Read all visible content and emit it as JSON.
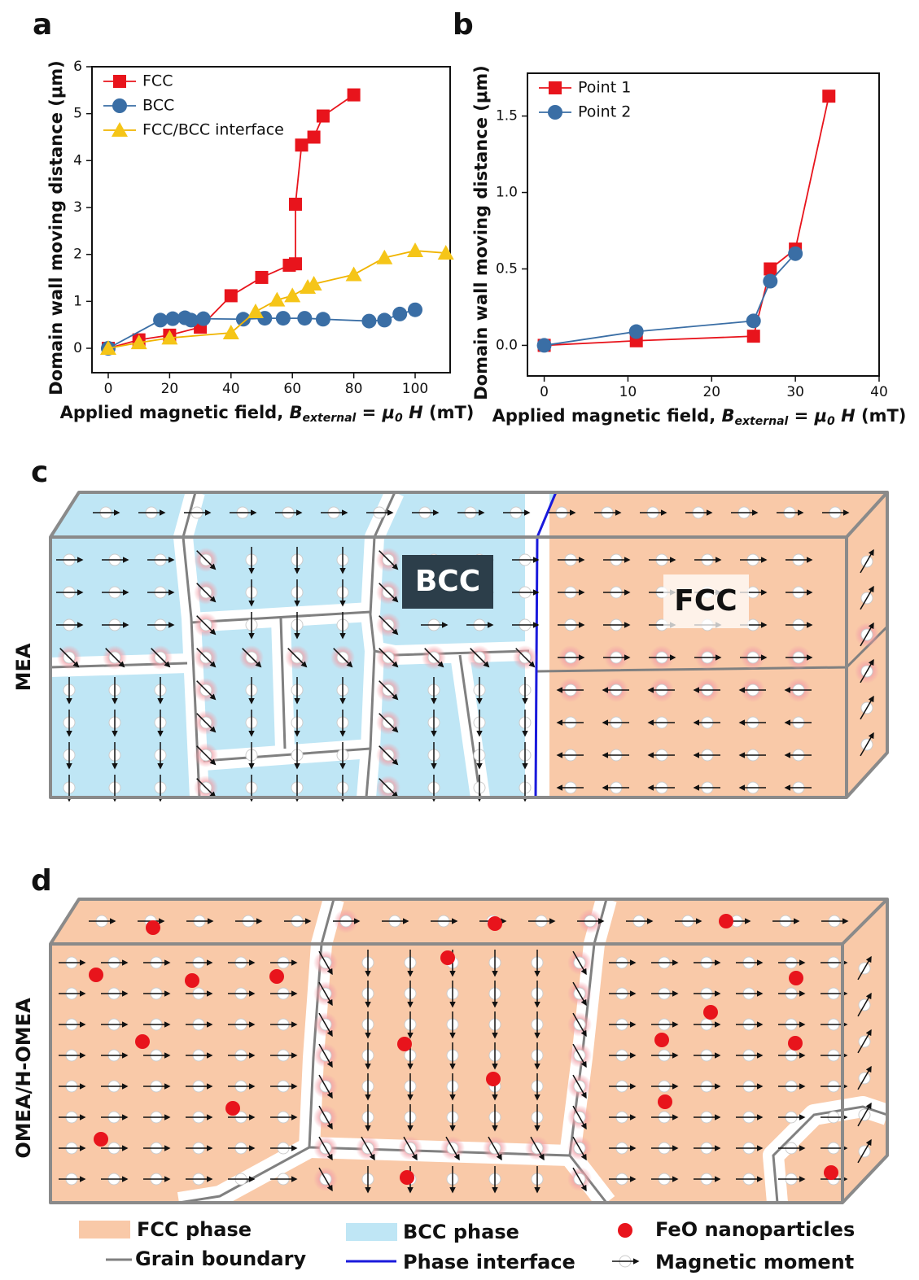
{
  "chart_data": [
    {
      "type": "line",
      "panel": "a",
      "y_label": "Domain wall moving distance (μm)",
      "x_label": [
        "Applied  magnetic field, ",
        "B",
        "external",
        " = ",
        "μ",
        "0",
        " H",
        " (mT)"
      ],
      "xlim": [
        -5.3,
        111.4
      ],
      "ylim": [
        -0.52,
        6
      ],
      "xticks": [
        0,
        20,
        40,
        60,
        80,
        100
      ],
      "yticks": [
        0,
        1,
        2,
        3,
        4,
        5,
        6
      ],
      "legend": "upper left",
      "series": [
        {
          "name": "FCC",
          "color": "#e8141c",
          "marker": "square",
          "x": [
            0,
            10,
            20,
            30,
            40,
            50,
            59,
            61,
            61,
            63,
            67,
            70,
            80
          ],
          "values": [
            0,
            0.18,
            0.28,
            0.45,
            1.12,
            1.51,
            1.77,
            1.8,
            3.07,
            4.33,
            4.5,
            4.95,
            5.4
          ]
        },
        {
          "name": "BCC",
          "color": "#3a6ea5",
          "marker": "circle",
          "x": [
            0,
            17,
            21,
            25,
            27,
            31,
            44,
            51,
            57,
            64,
            70,
            85,
            90,
            95,
            100
          ],
          "values": [
            0,
            0.6,
            0.63,
            0.65,
            0.6,
            0.63,
            0.62,
            0.64,
            0.64,
            0.64,
            0.62,
            0.58,
            0.6,
            0.73,
            0.82
          ]
        },
        {
          "name": "FCC/BCC interface",
          "color": "#f5c518",
          "marker": "triangle",
          "x": [
            0,
            10,
            20,
            40,
            48,
            55,
            60,
            65,
            67,
            80,
            90,
            100,
            110
          ],
          "values": [
            0,
            0.12,
            0.22,
            0.33,
            0.78,
            1.03,
            1.12,
            1.3,
            1.37,
            1.57,
            1.93,
            2.08,
            2.03
          ]
        }
      ]
    },
    {
      "type": "line",
      "panel": "b",
      "y_label": "Domain wall moving distance (μm)",
      "x_label": [
        "Applied  magnetic field, ",
        "B",
        "external",
        " = ",
        "μ",
        "0",
        " H",
        " (mT)"
      ],
      "xlim": [
        -2,
        40
      ],
      "ylim": [
        -0.2,
        1.78
      ],
      "xticks": [
        0,
        10,
        20,
        30,
        40
      ],
      "yticks": [
        {
          "value": 0,
          "label": "0.0"
        },
        0.5,
        {
          "value": 1,
          "label": "1.0"
        },
        1.5
      ],
      "legend": "upper left",
      "series": [
        {
          "name": "Point 1",
          "color": "#e8141c",
          "marker": "square",
          "x": [
            0,
            11,
            25,
            27,
            30,
            34
          ],
          "values": [
            0,
            0.03,
            0.06,
            0.5,
            0.63,
            1.63
          ]
        },
        {
          "name": "Point 2",
          "color": "#3a6ea5",
          "marker": "circle",
          "x": [
            0,
            11,
            25,
            27,
            30
          ],
          "values": [
            0,
            0.09,
            0.16,
            0.42,
            0.6
          ]
        }
      ]
    }
  ],
  "panel_c": {
    "label": "c",
    "row_label": "MEA",
    "bcc": "BCC",
    "fcc": "FCC"
  },
  "panel_d": {
    "label": "d",
    "row_label": "OMEA/H-OMEA"
  },
  "legend": {
    "fcc_phase": "FCC phase",
    "bcc_phase": "BCC phase",
    "feo": "FeO nanoparticles",
    "grain_boundary": "Grain boundary",
    "phase_interface": "Phase interface",
    "magnetic_moment": "Magnetic moment"
  }
}
